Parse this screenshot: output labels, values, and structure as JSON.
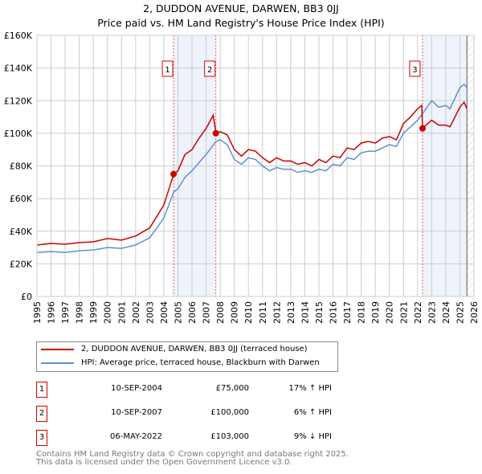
{
  "title": "2, DUDDON AVENUE, DARWEN, BB3 0JJ",
  "subtitle": "Price paid vs. HM Land Registry's House Price Index (HPI)",
  "chart_data": {
    "type": "line",
    "xlim": [
      1995,
      2026
    ],
    "ylim": [
      0,
      160000
    ],
    "x_ticks": [
      "1995",
      "1996",
      "1997",
      "1998",
      "1999",
      "2000",
      "2001",
      "2002",
      "2003",
      "2004",
      "2005",
      "2006",
      "2007",
      "2008",
      "2009",
      "2010",
      "2011",
      "2012",
      "2013",
      "2014",
      "2015",
      "2016",
      "2017",
      "2018",
      "2019",
      "2020",
      "2021",
      "2022",
      "2023",
      "2024",
      "2025",
      "2026"
    ],
    "y_ticks": [
      "£0",
      "£20K",
      "£40K",
      "£60K",
      "£80K",
      "£100K",
      "£120K",
      "£140K",
      "£160K"
    ],
    "series": [
      {
        "name": "2, DUDDON AVENUE, DARWEN, BB3 0JJ (terraced house)",
        "color": "#cc0000",
        "x": [
          1995,
          1996,
          1997,
          1998,
          1999,
          2000,
          2001,
          2002,
          2003,
          2004,
          2004.7,
          2005,
          2005.5,
          2006,
          2006.5,
          2007,
          2007.5,
          2007.7,
          2008,
          2008.5,
          2009,
          2009.5,
          2010,
          2010.5,
          2011,
          2011.5,
          2012,
          2012.5,
          2013,
          2013.5,
          2014,
          2014.5,
          2015,
          2015.5,
          2016,
          2016.5,
          2017,
          2017.5,
          2018,
          2018.5,
          2019,
          2019.5,
          2020,
          2020.5,
          2021,
          2021.5,
          2022,
          2022.3,
          2022.35,
          2023,
          2023.5,
          2024,
          2024.3,
          2025,
          2025.3,
          2025.5
        ],
        "values": [
          31.5,
          32.5,
          32,
          33,
          33.5,
          35.5,
          34.5,
          37,
          42,
          56,
          75,
          77,
          87,
          90,
          97,
          103,
          111,
          100,
          101,
          99,
          90,
          86,
          90,
          89,
          85,
          82,
          85,
          83,
          83,
          81,
          82,
          80,
          84,
          82,
          86,
          85,
          91,
          90,
          94,
          95,
          94,
          97,
          98,
          96,
          106,
          110,
          115,
          117,
          103,
          108,
          105,
          105,
          104,
          116,
          119,
          115
        ]
      },
      {
        "name": "HPI: Average price, terraced house, Blackburn with Darwen",
        "color": "#6090d0",
        "x": [
          1995,
          1996,
          1997,
          1998,
          1999,
          2000,
          2001,
          2002,
          2003,
          2004,
          2004.7,
          2005,
          2005.5,
          2006,
          2006.5,
          2007,
          2007.7,
          2008,
          2008.5,
          2009,
          2009.5,
          2010,
          2010.5,
          2011,
          2011.5,
          2012,
          2012.5,
          2013,
          2013.5,
          2014,
          2014.5,
          2015,
          2015.5,
          2016,
          2016.5,
          2017,
          2017.5,
          2018,
          2018.5,
          2019,
          2019.5,
          2020,
          2020.5,
          2021,
          2021.5,
          2022,
          2022.35,
          2023,
          2023.5,
          2024,
          2024.3,
          2025,
          2025.3,
          2025.5
        ],
        "values": [
          27,
          27.5,
          27,
          28,
          28.5,
          30,
          29.5,
          31.5,
          36,
          48,
          64,
          66,
          73,
          77,
          82,
          87,
          95,
          96,
          93,
          84,
          81,
          85,
          84,
          80,
          77,
          79,
          78,
          78,
          76,
          77,
          76,
          78,
          77,
          81,
          80,
          85,
          84,
          88,
          89,
          89,
          91,
          93,
          92,
          100,
          104,
          108,
          112,
          120,
          116,
          117,
          115,
          128,
          130,
          128
        ]
      }
    ],
    "value_unit": "thousand GBP",
    "sales": [
      {
        "label": "1",
        "x": 2004.69,
        "value": 75
      },
      {
        "label": "2",
        "x": 2007.69,
        "value": 100
      },
      {
        "label": "3",
        "x": 2022.35,
        "value": 103
      }
    ],
    "shaded_ranges": [
      [
        2004.69,
        2007.69
      ],
      [
        2022.35,
        2025.5
      ]
    ],
    "hatched_from": 2025.5,
    "grid": true
  },
  "legend": [
    {
      "label": "2, DUDDON AVENUE, DARWEN, BB3 0JJ (terraced house)",
      "color": "#cc0000"
    },
    {
      "label": "HPI: Average price, terraced house, Blackburn with Darwen",
      "color": "#6090d0"
    }
  ],
  "table": [
    {
      "num": "1",
      "date": "10-SEP-2004",
      "price": "£75,000",
      "hpi": "17% ↑ HPI"
    },
    {
      "num": "2",
      "date": "10-SEP-2007",
      "price": "£100,000",
      "hpi": "6% ↑ HPI"
    },
    {
      "num": "3",
      "date": "06-MAY-2022",
      "price": "£103,000",
      "hpi": "9% ↓ HPI"
    }
  ],
  "footer": [
    "Contains HM Land Registry data © Crown copyright and database right 2025.",
    "This data is licensed under the Open Government Licence v3.0."
  ]
}
